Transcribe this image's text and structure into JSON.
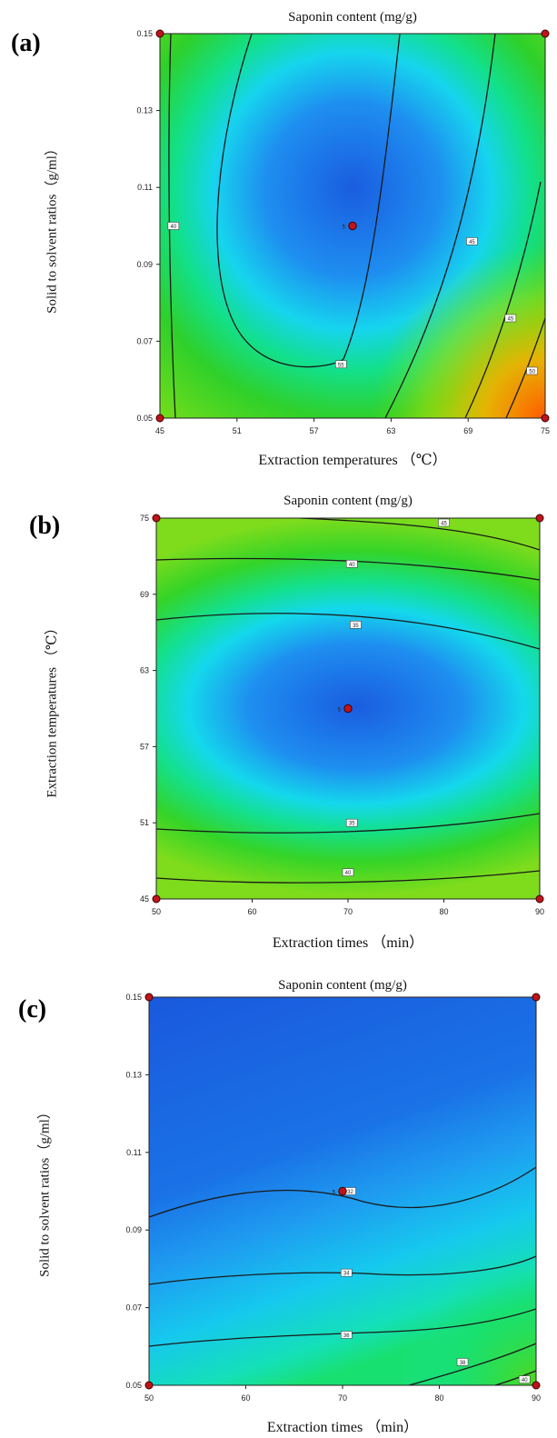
{
  "chart_data": [
    {
      "type": "heatmap",
      "panel_label": "(a)",
      "title": "Saponin content (mg/g)",
      "xlabel": "Extraction temperatures （℃）",
      "ylabel": "Solid to solvent ratios（g/ml）",
      "xticks": [
        "45",
        "51",
        "57",
        "63",
        "69",
        "75"
      ],
      "yticks": [
        "0.05",
        "0.07",
        "0.09",
        "0.11",
        "0.13",
        "0.15"
      ],
      "xlim": [
        45,
        75
      ],
      "ylim": [
        0.05,
        0.15
      ],
      "center_point": {
        "x": 60,
        "y": 0.1,
        "label": "5"
      },
      "design_points": [
        {
          "x": 45,
          "y": 0.05
        },
        {
          "x": 45,
          "y": 0.15
        },
        {
          "x": 75,
          "y": 0.05
        },
        {
          "x": 75,
          "y": 0.15
        }
      ],
      "contour_labels": [
        "40",
        "55",
        "45",
        "45",
        "50"
      ],
      "legend": "none",
      "grid": false
    },
    {
      "type": "heatmap",
      "panel_label": "(b)",
      "title": "Saponin content (mg/g)",
      "xlabel": "Extraction times （min）",
      "ylabel": "Extraction temperatures （℃）",
      "xticks": [
        "50",
        "60",
        "70",
        "80",
        "90"
      ],
      "yticks": [
        "45",
        "51",
        "57",
        "63",
        "69",
        "75"
      ],
      "xlim": [
        50,
        90
      ],
      "ylim": [
        45,
        75
      ],
      "center_point": {
        "x": 70,
        "y": 60,
        "label": "5"
      },
      "design_points": [
        {
          "x": 50,
          "y": 45
        },
        {
          "x": 50,
          "y": 75
        },
        {
          "x": 90,
          "y": 45
        },
        {
          "x": 90,
          "y": 75
        }
      ],
      "contour_labels": [
        "45",
        "40",
        "35",
        "35",
        "40"
      ],
      "legend": "none",
      "grid": false
    },
    {
      "type": "heatmap",
      "panel_label": "(c)",
      "title": "Saponin content (mg/g)",
      "xlabel": "Extraction times （min）",
      "ylabel": "Solid to solvent ratios（g/ml）",
      "xticks": [
        "50",
        "60",
        "70",
        "80",
        "90"
      ],
      "yticks": [
        "0.05",
        "0.07",
        "0.09",
        "0.11",
        "0.13",
        "0.15"
      ],
      "xlim": [
        50,
        90
      ],
      "ylim": [
        0.05,
        0.15
      ],
      "center_point": {
        "x": 70,
        "y": 0.1,
        "label": "5"
      },
      "design_points": [
        {
          "x": 50,
          "y": 0.05
        },
        {
          "x": 50,
          "y": 0.15
        },
        {
          "x": 90,
          "y": 0.05
        },
        {
          "x": 90,
          "y": 0.15
        }
      ],
      "contour_labels": [
        "32",
        "34",
        "36",
        "38",
        "40"
      ],
      "legend": "none",
      "grid": false
    }
  ]
}
